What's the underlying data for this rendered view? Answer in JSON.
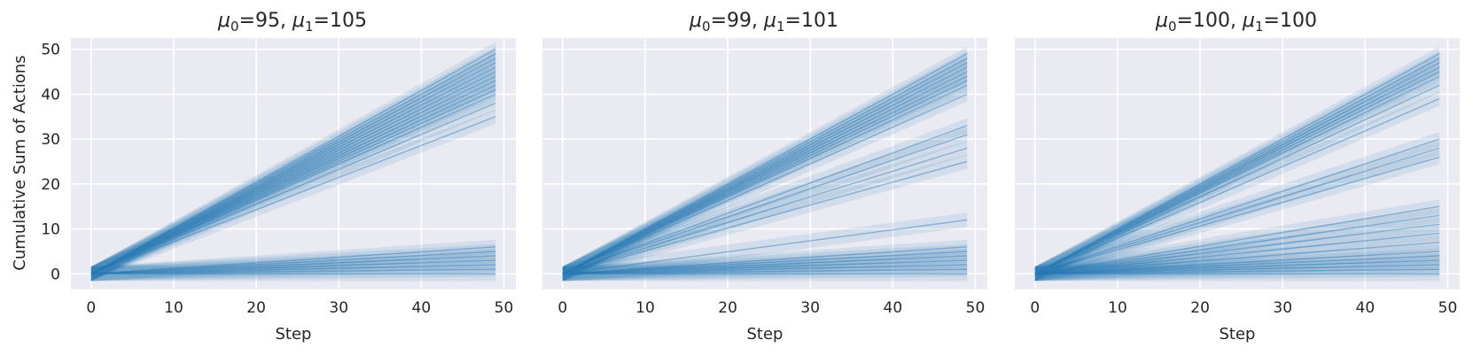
{
  "figure": {
    "ylabel": "Cumulative Sum of Actions",
    "xlabel": "Step",
    "x_ticks": [
      0,
      10,
      20,
      30,
      40,
      50
    ],
    "y_ticks": [
      0,
      10,
      20,
      30,
      40,
      50
    ],
    "colors": {
      "line": "#2878b5",
      "band": "#2878b5",
      "plot_bg": "#eaeaf2",
      "grid": "#ffffff"
    }
  },
  "chart_data": [
    {
      "type": "line",
      "title_parts": {
        "m0": "μ",
        "s0": "0",
        "v0": "=95, ",
        "m1": "μ",
        "s1": "1",
        "v1": "=105"
      },
      "xlabel": "Step",
      "ylabel": "Cumulative Sum of Actions",
      "xlim": [
        -2.45,
        51.45
      ],
      "ylim": [
        -3.5,
        52.5
      ],
      "grid": true,
      "x": [
        0,
        49
      ],
      "series": [
        {
          "values": [
            0,
            50
          ]
        },
        {
          "values": [
            0,
            49
          ]
        },
        {
          "values": [
            0,
            48
          ]
        },
        {
          "values": [
            0,
            47
          ]
        },
        {
          "values": [
            0,
            46
          ]
        },
        {
          "values": [
            0,
            45
          ]
        },
        {
          "values": [
            0,
            44
          ]
        },
        {
          "values": [
            0,
            43
          ]
        },
        {
          "values": [
            0,
            42
          ]
        },
        {
          "values": [
            0,
            41
          ]
        },
        {
          "values": [
            0,
            40
          ]
        },
        {
          "values": [
            0,
            38
          ]
        },
        {
          "values": [
            0,
            35
          ]
        },
        {
          "values": [
            0,
            6
          ]
        },
        {
          "values": [
            0,
            5
          ]
        },
        {
          "values": [
            0,
            4
          ]
        },
        {
          "values": [
            0,
            3
          ]
        },
        {
          "values": [
            0,
            2
          ]
        },
        {
          "values": [
            0,
            1
          ]
        },
        {
          "values": [
            0,
            0
          ]
        }
      ]
    },
    {
      "type": "line",
      "title_parts": {
        "m0": "μ",
        "s0": "0",
        "v0": "=99, ",
        "m1": "μ",
        "s1": "1",
        "v1": "=101"
      },
      "xlabel": "Step",
      "ylabel": "",
      "xlim": [
        -2.45,
        51.45
      ],
      "ylim": [
        -3.5,
        52.5
      ],
      "grid": true,
      "x": [
        0,
        49
      ],
      "series": [
        {
          "values": [
            0,
            49
          ]
        },
        {
          "values": [
            0,
            48
          ]
        },
        {
          "values": [
            0,
            47
          ]
        },
        {
          "values": [
            0,
            46
          ]
        },
        {
          "values": [
            0,
            45
          ]
        },
        {
          "values": [
            0,
            44
          ]
        },
        {
          "values": [
            0,
            43
          ]
        },
        {
          "values": [
            0,
            42
          ]
        },
        {
          "values": [
            0,
            40
          ]
        },
        {
          "values": [
            0,
            33
          ]
        },
        {
          "values": [
            0,
            31
          ]
        },
        {
          "values": [
            0,
            28
          ]
        },
        {
          "values": [
            0,
            25
          ]
        },
        {
          "values": [
            0,
            12
          ]
        },
        {
          "values": [
            0,
            6
          ]
        },
        {
          "values": [
            0,
            5
          ]
        },
        {
          "values": [
            0,
            4
          ]
        },
        {
          "values": [
            0,
            3
          ]
        },
        {
          "values": [
            0,
            2
          ]
        },
        {
          "values": [
            0,
            1
          ]
        },
        {
          "values": [
            0,
            0
          ]
        }
      ]
    },
    {
      "type": "line",
      "title_parts": {
        "m0": "μ",
        "s0": "0",
        "v0": "=100, ",
        "m1": "μ",
        "s1": "1",
        "v1": "=100"
      },
      "xlabel": "Step",
      "ylabel": "",
      "xlim": [
        -2.45,
        51.45
      ],
      "ylim": [
        -3.5,
        52.5
      ],
      "grid": true,
      "x": [
        0,
        49
      ],
      "series": [
        {
          "values": [
            0,
            49
          ]
        },
        {
          "values": [
            0,
            48
          ]
        },
        {
          "values": [
            0,
            47
          ]
        },
        {
          "values": [
            0,
            46
          ]
        },
        {
          "values": [
            0,
            45
          ]
        },
        {
          "values": [
            0,
            44
          ]
        },
        {
          "values": [
            0,
            42
          ]
        },
        {
          "values": [
            0,
            39
          ]
        },
        {
          "values": [
            0,
            30
          ]
        },
        {
          "values": [
            0,
            28
          ]
        },
        {
          "values": [
            0,
            26
          ]
        },
        {
          "values": [
            0,
            15
          ]
        },
        {
          "values": [
            0,
            13
          ]
        },
        {
          "values": [
            0,
            11
          ]
        },
        {
          "values": [
            0,
            9
          ]
        },
        {
          "values": [
            0,
            7
          ]
        },
        {
          "values": [
            0,
            5
          ]
        },
        {
          "values": [
            0,
            4
          ]
        },
        {
          "values": [
            0,
            3
          ]
        },
        {
          "values": [
            0,
            2
          ]
        },
        {
          "values": [
            0,
            1
          ]
        },
        {
          "values": [
            0,
            0
          ]
        }
      ]
    }
  ]
}
